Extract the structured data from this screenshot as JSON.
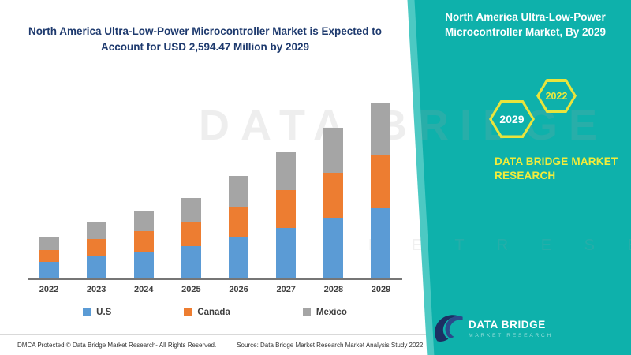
{
  "chart": {
    "title": "North America Ultra-Low-Power Microcontroller Market is Expected to Account for USD 2,594.47 Million by 2029"
  },
  "chart_data": {
    "type": "bar",
    "stacked": true,
    "title": "North America Ultra-Low-Power Microcontroller Market is Expected to Account for USD 2,594.47 Million by 2029",
    "categories": [
      "2022",
      "2023",
      "2024",
      "2025",
      "2026",
      "2027",
      "2028",
      "2029"
    ],
    "series": [
      {
        "name": "U.S",
        "color": "#5b9bd5",
        "values": [
          250,
          335,
          400,
          480,
          610,
          750,
          895,
          1040
        ]
      },
      {
        "name": "Canada",
        "color": "#ed7d31",
        "values": [
          180,
          250,
          300,
          360,
          460,
          565,
          670,
          780
        ]
      },
      {
        "name": "Mexico",
        "color": "#a5a5a5",
        "values": [
          200,
          255,
          305,
          355,
          460,
          565,
          670,
          774
        ]
      }
    ],
    "value_unit": "USD Million",
    "xlabel": "",
    "ylabel": "",
    "ylim": [
      0,
      2800
    ],
    "grid": false,
    "legend_position": "bottom"
  },
  "brand_panel": {
    "title": "North America Ultra-Low-Power Microcontroller Market, By 2029",
    "hexagons": [
      {
        "label": "2029"
      },
      {
        "label": "2022"
      }
    ],
    "brand_name": "DATA BRIDGE MARKET RESEARCH",
    "logo": {
      "name": "DATA BRIDGE",
      "sub": "MARKET RESEARCH"
    },
    "colors": {
      "teal": "#0eb1ab",
      "yellow": "#e9e43c"
    }
  },
  "watermark": {
    "line1": "DATA BRIDGE",
    "line2": "M A R K E T   R E S E A R C H"
  },
  "footer": {
    "left": "DMCA Protected © Data Bridge Market Research- All Rights Reserved.",
    "source": "Source: Data Bridge Market Research Market Analysis Study 2022"
  }
}
